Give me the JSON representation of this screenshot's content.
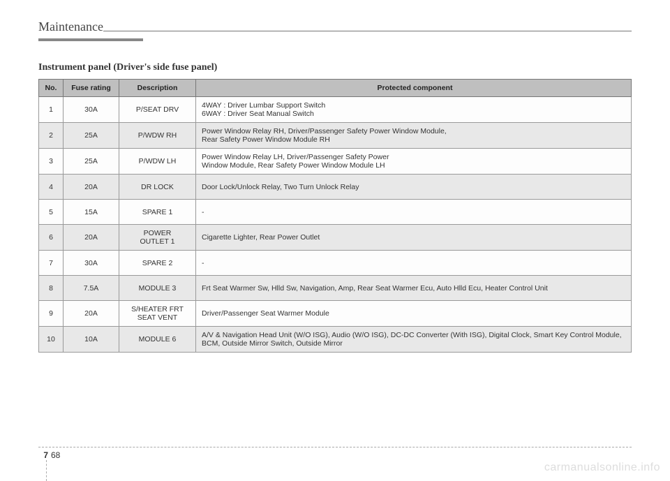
{
  "header": {
    "section": "Maintenance",
    "subtitle": "Instrument panel (Driver's side fuse panel)"
  },
  "table": {
    "columns": [
      "No.",
      "Fuse rating",
      "Description",
      "Protected component"
    ],
    "rows": [
      {
        "no": "1",
        "rating": "30A",
        "desc": "P/SEAT DRV",
        "prot": "4WAY : Driver Lumbar Support Switch\n6WAY : Driver Seat Manual Switch"
      },
      {
        "no": "2",
        "rating": "25A",
        "desc": "P/WDW RH",
        "prot": "Power Window Relay RH, Driver/Passenger Safety Power Window Module,\nRear Safety Power Window Module RH"
      },
      {
        "no": "3",
        "rating": "25A",
        "desc": "P/WDW LH",
        "prot": "Power Window Relay LH, Driver/Passenger Safety Power\nWindow Module, Rear Safety Power Window Module LH"
      },
      {
        "no": "4",
        "rating": "20A",
        "desc": "DR LOCK",
        "prot": "Door Lock/Unlock Relay, Two Turn Unlock Relay"
      },
      {
        "no": "5",
        "rating": "15A",
        "desc": "SPARE 1",
        "prot": "-"
      },
      {
        "no": "6",
        "rating": "20A",
        "desc": "POWER\nOUTLET 1",
        "prot": "Cigarette Lighter, Rear Power Outlet"
      },
      {
        "no": "7",
        "rating": "30A",
        "desc": "SPARE 2",
        "prot": "-"
      },
      {
        "no": "8",
        "rating": "7.5A",
        "desc": "MODULE 3",
        "prot": "Frt Seat Warmer Sw, Hlld Sw, Navigation, Amp, Rear Seat Warmer Ecu, Auto Hlld Ecu, Heater Control Unit"
      },
      {
        "no": "9",
        "rating": "20A",
        "desc": "S/HEATER FRT\nSEAT VENT",
        "prot": "Driver/Passenger Seat Warmer Module"
      },
      {
        "no": "10",
        "rating": "10A",
        "desc": "MODULE 6",
        "prot": "A/V & Navigation Head Unit (W/O ISG), Audio (W/O ISG), DC-DC Converter (With ISG), Digital Clock, Smart Key Control Module, BCM, Outside Mirror Switch, Outside Mirror"
      }
    ]
  },
  "footer": {
    "chapter": "7",
    "page": "68"
  },
  "watermark": "carmanualsonline.info",
  "styles": {
    "header_bg": "#bfbfbf",
    "row_alt_bg": "#e8e8e8",
    "border_color": "#999",
    "watermark_color": "#ddd"
  }
}
